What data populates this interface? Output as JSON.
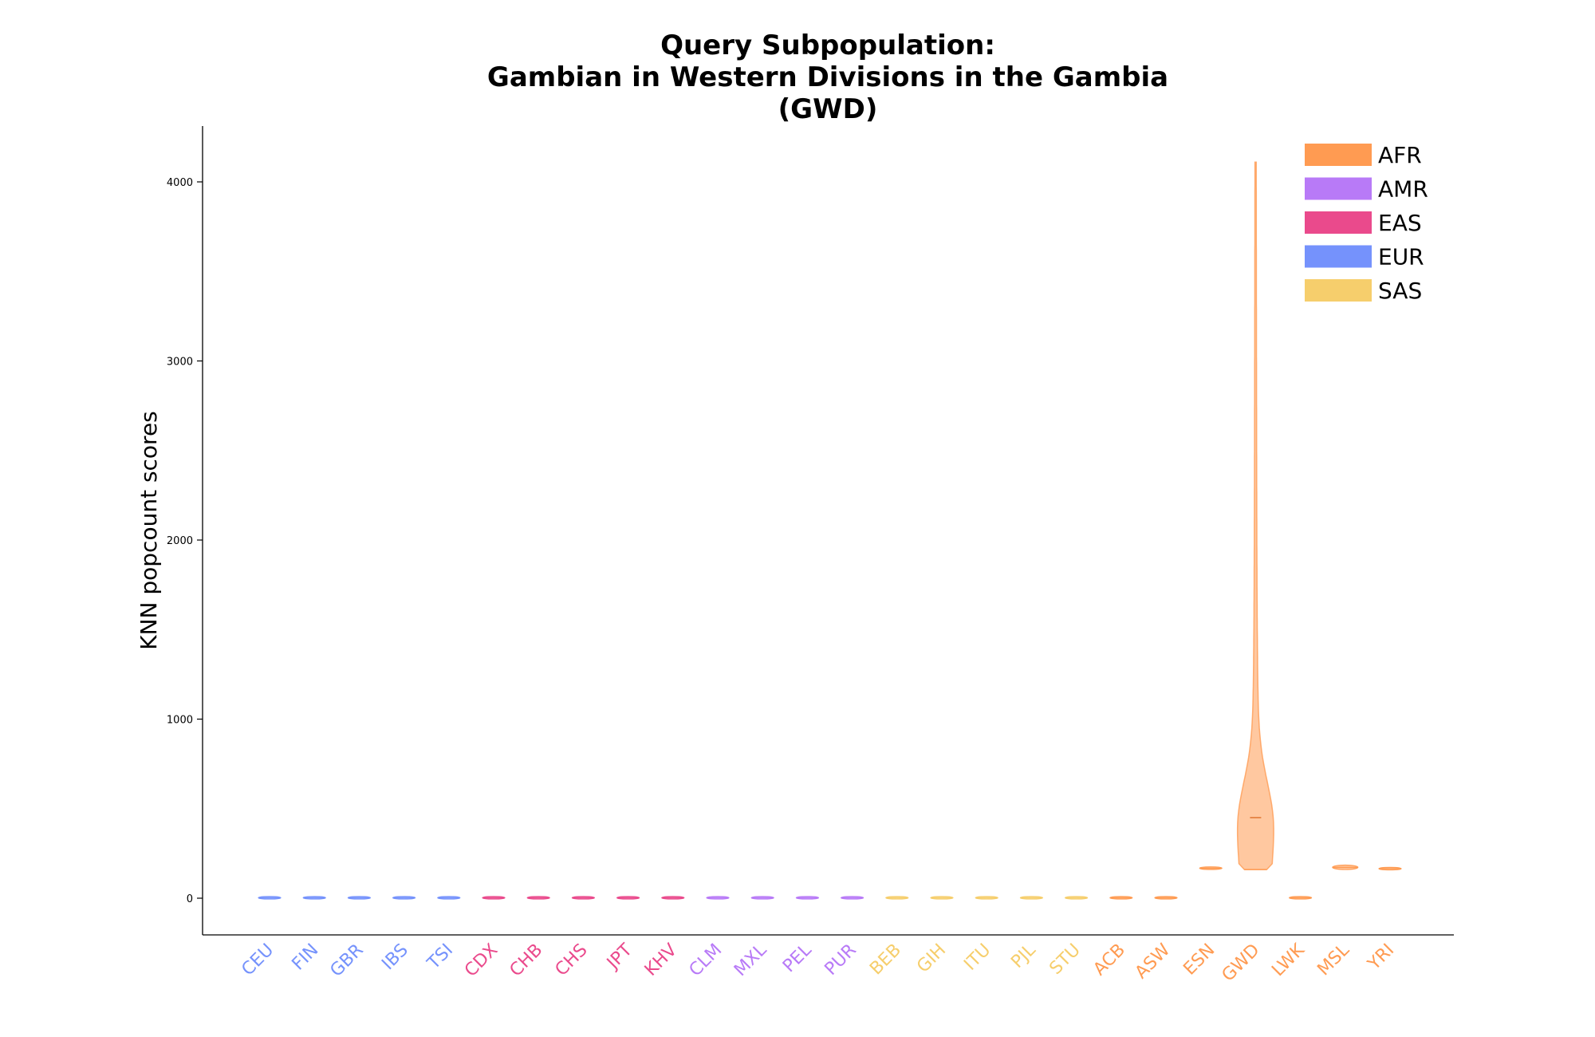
{
  "chart_data": {
    "type": "violin",
    "title_lines": [
      "Query Subpopulation:",
      "Gambian in Western Divisions in the Gambia",
      "(GWD)"
    ],
    "xlabel": "",
    "ylabel": "KNN popcount scores",
    "ylim": [
      -200,
      4300
    ],
    "yticks": [
      0,
      1000,
      2000,
      3000,
      4000
    ],
    "yticks_labels": [
      "0",
      "1000",
      "2000",
      "3000",
      "4000"
    ],
    "grid": false,
    "legend_position": "top-right",
    "superpop_colors": {
      "AFR": "#ff9b52",
      "AMR": "#b87af7",
      "EAS": "#ea4a8c",
      "EUR": "#7592fc",
      "SAS": "#f6ce6c"
    },
    "legend": [
      {
        "label": "AFR",
        "color": "#ff9b52"
      },
      {
        "label": "AMR",
        "color": "#b87af7"
      },
      {
        "label": "EAS",
        "color": "#ea4a8c"
      },
      {
        "label": "EUR",
        "color": "#7592fc"
      },
      {
        "label": "SAS",
        "color": "#f6ce6c"
      }
    ],
    "categories": [
      "CEU",
      "FIN",
      "GBR",
      "IBS",
      "TSI",
      "CDX",
      "CHB",
      "CHS",
      "JPT",
      "KHV",
      "CLM",
      "MXL",
      "PEL",
      "PUR",
      "BEB",
      "GIH",
      "ITU",
      "PJL",
      "STU",
      "ACB",
      "ASW",
      "ESN",
      "GWD",
      "LWK",
      "MSL",
      "YRI"
    ],
    "superpops": [
      "EUR",
      "EUR",
      "EUR",
      "EUR",
      "EUR",
      "EAS",
      "EAS",
      "EAS",
      "EAS",
      "EAS",
      "AMR",
      "AMR",
      "AMR",
      "AMR",
      "SAS",
      "SAS",
      "SAS",
      "SAS",
      "SAS",
      "AFR",
      "AFR",
      "AFR",
      "AFR",
      "AFR",
      "AFR",
      "AFR"
    ],
    "series": [
      {
        "category": "CEU",
        "min": 0,
        "max": 5,
        "median": 2
      },
      {
        "category": "FIN",
        "min": 0,
        "max": 5,
        "median": 2
      },
      {
        "category": "GBR",
        "min": 0,
        "max": 5,
        "median": 2
      },
      {
        "category": "IBS",
        "min": 0,
        "max": 5,
        "median": 2
      },
      {
        "category": "TSI",
        "min": 0,
        "max": 5,
        "median": 2
      },
      {
        "category": "CDX",
        "min": 0,
        "max": 5,
        "median": 2
      },
      {
        "category": "CHB",
        "min": 0,
        "max": 5,
        "median": 2
      },
      {
        "category": "CHS",
        "min": 0,
        "max": 5,
        "median": 2
      },
      {
        "category": "JPT",
        "min": 0,
        "max": 5,
        "median": 2
      },
      {
        "category": "KHV",
        "min": 0,
        "max": 5,
        "median": 2
      },
      {
        "category": "CLM",
        "min": 0,
        "max": 5,
        "median": 2
      },
      {
        "category": "MXL",
        "min": 0,
        "max": 5,
        "median": 2
      },
      {
        "category": "PEL",
        "min": 0,
        "max": 5,
        "median": 2
      },
      {
        "category": "PUR",
        "min": 0,
        "max": 5,
        "median": 2
      },
      {
        "category": "BEB",
        "min": 0,
        "max": 5,
        "median": 2
      },
      {
        "category": "GIH",
        "min": 0,
        "max": 5,
        "median": 2
      },
      {
        "category": "ITU",
        "min": 0,
        "max": 5,
        "median": 2
      },
      {
        "category": "PJL",
        "min": 0,
        "max": 5,
        "median": 2
      },
      {
        "category": "STU",
        "min": 0,
        "max": 5,
        "median": 2
      },
      {
        "category": "ACB",
        "min": 0,
        "max": 5,
        "median": 2
      },
      {
        "category": "ASW",
        "min": 0,
        "max": 5,
        "median": 2
      },
      {
        "category": "ESN",
        "min": 160,
        "max": 175,
        "median": 167
      },
      {
        "category": "GWD",
        "min": 160,
        "max": 4110,
        "median": 450
      },
      {
        "category": "LWK",
        "min": 0,
        "max": 5,
        "median": 2
      },
      {
        "category": "MSL",
        "min": 160,
        "max": 185,
        "median": 172
      },
      {
        "category": "YRI",
        "min": 160,
        "max": 170,
        "median": 165
      }
    ]
  }
}
